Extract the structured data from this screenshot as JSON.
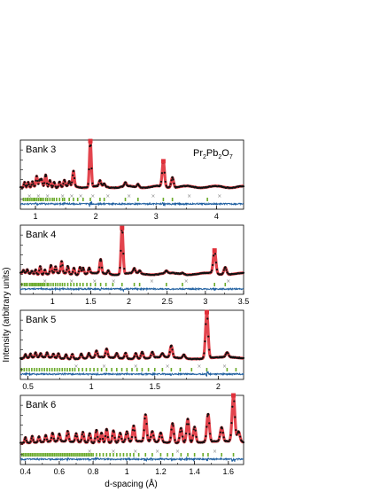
{
  "figure": {
    "compound_main": "Pr",
    "compound_sub1": "2",
    "compound_mid": "Pb",
    "compound_sub2": "2",
    "compound_end": "O",
    "compound_sub3": "7",
    "ylabel": "Intensity (arbitrary units)",
    "xlabel": "d-spacing (Å)"
  },
  "colors": {
    "observed": "#111111",
    "calculated": "#e0303a",
    "reflections": "#6aaa2a",
    "difference": "#1f5fa0",
    "extra_reflections": "#888888"
  },
  "chart_data": [
    {
      "type": "line",
      "label": "Bank 3",
      "xlim": [
        0.75,
        4.45
      ],
      "xticks": [
        "1",
        "2",
        "3",
        "4"
      ],
      "xtick_values": [
        1,
        2,
        3,
        4
      ],
      "background": 0.1,
      "peaks": [
        [
          0.82,
          0.12
        ],
        [
          0.88,
          0.12
        ],
        [
          0.95,
          0.12
        ],
        [
          1.02,
          0.22
        ],
        [
          1.07,
          0.12
        ],
        [
          1.1,
          0.14
        ],
        [
          1.17,
          0.25
        ],
        [
          1.24,
          0.15
        ],
        [
          1.31,
          0.12
        ],
        [
          1.4,
          0.12
        ],
        [
          1.48,
          0.14
        ],
        [
          1.56,
          0.1
        ],
        [
          1.63,
          0.33
        ],
        [
          1.91,
          1.0
        ],
        [
          2.07,
          0.12
        ],
        [
          2.14,
          0.06
        ],
        [
          2.49,
          0.08
        ],
        [
          2.7,
          0.07
        ],
        [
          3.12,
          0.55
        ],
        [
          3.27,
          0.22
        ]
      ],
      "markers": [
        1.91,
        3.12
      ],
      "reflections": [
        0.8,
        0.83,
        0.86,
        0.88,
        0.91,
        0.94,
        0.97,
        0.99,
        1.02,
        1.05,
        1.08,
        1.1,
        1.13,
        1.17,
        1.2,
        1.24,
        1.28,
        1.31,
        1.35,
        1.4,
        1.45,
        1.48,
        1.56,
        1.63,
        1.7,
        1.79,
        1.91,
        2.07,
        2.14,
        2.49,
        2.7,
        3.12,
        3.27,
        3.85
      ],
      "extra_reflections": [
        0.9,
        1.05,
        1.2,
        1.45,
        1.6,
        1.75,
        1.95,
        2.2,
        2.55,
        2.95,
        3.55,
        4.05
      ]
    },
    {
      "type": "line",
      "label": "Bank 4",
      "xlim": [
        0.58,
        3.5
      ],
      "xticks": [
        "1",
        "1.5",
        "2",
        "2.5",
        "3",
        "3.5"
      ],
      "xtick_values": [
        1,
        1.5,
        2,
        2.5,
        3,
        3.5
      ],
      "background": 0.06,
      "peaks": [
        [
          0.62,
          0.06
        ],
        [
          0.67,
          0.08
        ],
        [
          0.73,
          0.06
        ],
        [
          0.78,
          0.1
        ],
        [
          0.84,
          0.18
        ],
        [
          0.9,
          0.1
        ],
        [
          0.98,
          0.18
        ],
        [
          1.04,
          0.14
        ],
        [
          1.12,
          0.25
        ],
        [
          1.2,
          0.16
        ],
        [
          1.28,
          0.14
        ],
        [
          1.36,
          0.16
        ],
        [
          1.4,
          0.14
        ],
        [
          1.48,
          0.12
        ],
        [
          1.63,
          0.3
        ],
        [
          1.73,
          0.08
        ],
        [
          1.91,
          1.0
        ],
        [
          2.07,
          0.1
        ],
        [
          2.14,
          0.06
        ],
        [
          2.49,
          0.05
        ],
        [
          2.7,
          0.03
        ],
        [
          3.12,
          0.5
        ],
        [
          3.26,
          0.16
        ]
      ],
      "markers": [
        1.91,
        3.12
      ],
      "reflections": [
        0.6,
        0.63,
        0.65,
        0.67,
        0.7,
        0.72,
        0.74,
        0.76,
        0.78,
        0.8,
        0.82,
        0.84,
        0.86,
        0.88,
        0.9,
        0.93,
        0.95,
        0.98,
        1.01,
        1.04,
        1.07,
        1.1,
        1.13,
        1.16,
        1.2,
        1.24,
        1.28,
        1.32,
        1.36,
        1.4,
        1.45,
        1.5,
        1.56,
        1.63,
        1.7,
        1.79,
        1.91,
        2.07,
        2.14,
        2.49,
        2.7,
        3.12,
        3.26
      ],
      "extra_reflections": [
        0.9,
        1.25,
        1.55,
        1.8,
        2.3,
        2.75,
        3.3
      ]
    },
    {
      "type": "line",
      "label": "Bank 5",
      "xlim": [
        0.44,
        2.2
      ],
      "xticks": [
        "0.5",
        "1",
        "1.5",
        "2"
      ],
      "xtick_values": [
        0.5,
        1,
        1.5,
        2
      ],
      "background": 0.08,
      "peaks": [
        [
          0.48,
          0.08
        ],
        [
          0.52,
          0.08
        ],
        [
          0.56,
          0.1
        ],
        [
          0.6,
          0.08
        ],
        [
          0.65,
          0.1
        ],
        [
          0.7,
          0.08
        ],
        [
          0.74,
          0.1
        ],
        [
          0.8,
          0.09
        ],
        [
          0.85,
          0.1
        ],
        [
          0.92,
          0.1
        ],
        [
          0.98,
          0.1
        ],
        [
          1.04,
          0.14
        ],
        [
          1.12,
          0.18
        ],
        [
          1.2,
          0.1
        ],
        [
          1.27,
          0.12
        ],
        [
          1.35,
          0.12
        ],
        [
          1.4,
          0.14
        ],
        [
          1.48,
          0.12
        ],
        [
          1.56,
          0.08
        ],
        [
          1.63,
          0.25
        ],
        [
          1.73,
          0.08
        ],
        [
          1.91,
          1.0
        ],
        [
          2.07,
          0.1
        ]
      ],
      "markers": [
        1.91
      ],
      "reflections": [
        0.45,
        0.47,
        0.49,
        0.51,
        0.53,
        0.55,
        0.57,
        0.59,
        0.61,
        0.63,
        0.65,
        0.67,
        0.69,
        0.71,
        0.73,
        0.75,
        0.77,
        0.79,
        0.81,
        0.83,
        0.85,
        0.87,
        0.9,
        0.93,
        0.96,
        0.99,
        1.02,
        1.05,
        1.08,
        1.12,
        1.16,
        1.2,
        1.24,
        1.28,
        1.32,
        1.36,
        1.4,
        1.45,
        1.5,
        1.56,
        1.63,
        1.7,
        1.79,
        1.91,
        2.07,
        2.14
      ],
      "extra_reflections": [
        0.88,
        1.1,
        1.35,
        1.6,
        1.85,
        2.05
      ]
    },
    {
      "type": "line",
      "label": "Bank 6",
      "xlim": [
        0.37,
        1.69
      ],
      "xticks": [
        "0.4",
        "0.6",
        "0.8",
        "1",
        "1.2",
        "1.4",
        "1.6"
      ],
      "xtick_values": [
        0.4,
        0.6,
        0.8,
        1.0,
        1.2,
        1.4,
        1.6
      ],
      "background": 0.1,
      "peaks": [
        [
          0.4,
          0.12
        ],
        [
          0.44,
          0.14
        ],
        [
          0.48,
          0.12
        ],
        [
          0.52,
          0.14
        ],
        [
          0.56,
          0.18
        ],
        [
          0.6,
          0.16
        ],
        [
          0.65,
          0.22
        ],
        [
          0.7,
          0.18
        ],
        [
          0.74,
          0.22
        ],
        [
          0.78,
          0.2
        ],
        [
          0.82,
          0.28
        ],
        [
          0.85,
          0.22
        ],
        [
          0.88,
          0.3
        ],
        [
          0.92,
          0.26
        ],
        [
          0.96,
          0.2
        ],
        [
          1.0,
          0.22
        ],
        [
          1.04,
          0.34
        ],
        [
          1.11,
          0.58
        ],
        [
          1.15,
          0.22
        ],
        [
          1.2,
          0.2
        ],
        [
          1.27,
          0.42
        ],
        [
          1.32,
          0.32
        ],
        [
          1.36,
          0.52
        ],
        [
          1.4,
          0.34
        ],
        [
          1.48,
          0.6
        ],
        [
          1.56,
          0.3
        ],
        [
          1.63,
          1.0
        ],
        [
          1.66,
          0.22
        ]
      ],
      "markers": [
        1.63
      ],
      "reflections": [
        0.38,
        0.39,
        0.4,
        0.41,
        0.42,
        0.43,
        0.44,
        0.45,
        0.46,
        0.47,
        0.48,
        0.49,
        0.5,
        0.51,
        0.52,
        0.53,
        0.54,
        0.55,
        0.56,
        0.57,
        0.58,
        0.59,
        0.6,
        0.61,
        0.62,
        0.63,
        0.64,
        0.65,
        0.66,
        0.67,
        0.68,
        0.69,
        0.7,
        0.71,
        0.72,
        0.73,
        0.74,
        0.75,
        0.76,
        0.77,
        0.78,
        0.79,
        0.8,
        0.82,
        0.84,
        0.86,
        0.88,
        0.9,
        0.92,
        0.94,
        0.96,
        0.98,
        1.0,
        1.02,
        1.04,
        1.07,
        1.11,
        1.15,
        1.2,
        1.24,
        1.27,
        1.32,
        1.36,
        1.4,
        1.45,
        1.48,
        1.56,
        1.63
      ],
      "extra_reflections": [
        0.78,
        0.92,
        1.05,
        1.18,
        1.3,
        1.52
      ]
    }
  ]
}
